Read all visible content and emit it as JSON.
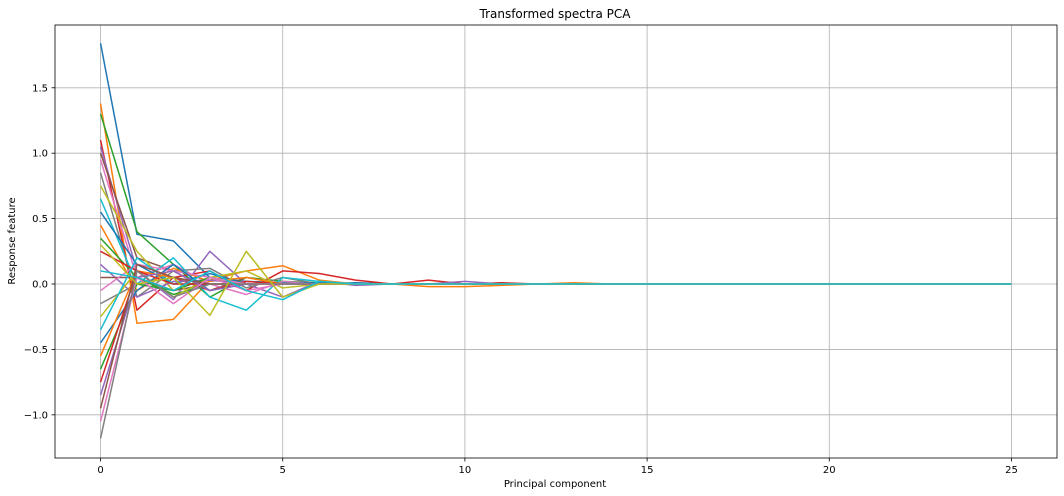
{
  "chart_data": {
    "type": "line",
    "title": "Transformed spectra PCA",
    "xlabel": "Principal component",
    "ylabel": "Response feature",
    "xlim": [
      -1.25,
      26.25
    ],
    "ylim": [
      -1.33,
      1.98
    ],
    "xticks": [
      0,
      5,
      10,
      15,
      20,
      25
    ],
    "xtick_labels": [
      "0",
      "5",
      "10",
      "15",
      "20",
      "25"
    ],
    "yticks": [
      -1.0,
      -0.5,
      0.0,
      0.5,
      1.0,
      1.5
    ],
    "ytick_labels": [
      "−1.0",
      "−0.5",
      "0.0",
      "0.5",
      "1.0",
      "1.5"
    ],
    "grid": true,
    "legend": "none",
    "x": [
      0,
      1,
      2,
      3,
      4,
      5,
      6,
      7,
      8,
      9,
      10,
      11,
      12,
      13,
      14,
      15,
      16,
      17,
      18,
      19,
      20,
      21,
      22,
      23,
      24,
      25
    ],
    "colors": [
      "#1f77b4",
      "#ff7f0e",
      "#2ca02c",
      "#d62728",
      "#9467bd",
      "#8c564b",
      "#e377c2",
      "#7f7f7f",
      "#bcbd22",
      "#17becf"
    ],
    "series": [
      {
        "values": [
          1.84,
          0.38,
          0.33,
          0.05,
          0.02,
          0.01,
          0.0,
          0.01,
          0.0,
          0.0,
          0.0,
          0.0,
          0.0,
          0.0,
          0.0,
          0.0,
          0.0,
          0.0,
          0.0,
          0.0,
          0.0,
          0.0,
          0.0,
          0.0,
          0.0,
          0.0
        ]
      },
      {
        "values": [
          1.38,
          -0.3,
          -0.27,
          0.03,
          0.1,
          0.14,
          0.03,
          0.0,
          0.0,
          -0.02,
          -0.02,
          -0.01,
          0.0,
          0.01,
          0.0,
          0.0,
          0.0,
          0.0,
          0.0,
          0.0,
          0.0,
          0.0,
          0.0,
          0.0,
          0.0,
          0.0
        ]
      },
      {
        "values": [
          1.3,
          0.4,
          0.15,
          -0.1,
          0.05,
          0.02,
          0.01,
          0.0,
          0.0,
          0.0,
          0.0,
          0.0,
          0.0,
          0.0,
          0.0,
          0.0,
          0.0,
          0.0,
          0.0,
          0.0,
          0.0,
          0.0,
          0.0,
          0.0,
          0.0,
          0.0
        ]
      },
      {
        "values": [
          1.1,
          -0.2,
          0.05,
          0.1,
          -0.05,
          0.1,
          0.08,
          0.03,
          0.0,
          0.03,
          0.0,
          0.01,
          0.0,
          0.0,
          0.0,
          0.0,
          0.0,
          0.0,
          0.0,
          0.0,
          0.0,
          0.0,
          0.0,
          0.0,
          0.0,
          0.0
        ]
      },
      {
        "values": [
          1.05,
          0.1,
          -0.12,
          0.25,
          0.0,
          -0.1,
          0.02,
          -0.01,
          0.0,
          0.0,
          0.02,
          0.0,
          0.0,
          0.0,
          0.0,
          0.0,
          0.0,
          0.0,
          0.0,
          0.0,
          0.0,
          0.0,
          0.0,
          0.0,
          0.0,
          0.0
        ]
      },
      {
        "values": [
          1.0,
          0.2,
          0.1,
          -0.05,
          0.05,
          0.0,
          0.0,
          0.0,
          0.0,
          0.0,
          0.0,
          0.0,
          0.0,
          0.0,
          0.0,
          0.0,
          0.0,
          0.0,
          0.0,
          0.0,
          0.0,
          0.0,
          0.0,
          0.0,
          0.0,
          0.0
        ]
      },
      {
        "values": [
          0.95,
          0.05,
          0.15,
          0.0,
          -0.08,
          0.02,
          0.0,
          0.0,
          0.0,
          0.0,
          0.0,
          0.0,
          0.0,
          0.0,
          0.0,
          0.0,
          0.0,
          0.0,
          0.0,
          0.0,
          0.0,
          0.0,
          0.0,
          0.0,
          0.0,
          0.0
        ]
      },
      {
        "values": [
          0.85,
          -0.1,
          0.1,
          0.12,
          -0.03,
          0.05,
          0.0,
          0.0,
          0.0,
          0.0,
          0.0,
          0.0,
          0.0,
          0.0,
          0.0,
          0.0,
          0.0,
          0.0,
          0.0,
          0.0,
          0.0,
          0.0,
          0.0,
          0.0,
          0.0,
          0.0
        ]
      },
      {
        "values": [
          0.75,
          0.25,
          -0.05,
          0.05,
          0.1,
          -0.03,
          0.0,
          0.0,
          0.0,
          0.0,
          0.0,
          0.0,
          0.0,
          0.0,
          0.0,
          0.0,
          0.0,
          0.0,
          0.0,
          0.0,
          0.0,
          0.0,
          0.0,
          0.0,
          0.0,
          0.0
        ]
      },
      {
        "values": [
          0.65,
          0.0,
          0.2,
          -0.1,
          -0.2,
          0.05,
          0.02,
          0.0,
          0.0,
          0.0,
          0.0,
          0.0,
          0.0,
          0.0,
          0.0,
          0.0,
          0.0,
          0.0,
          0.0,
          0.0,
          0.0,
          0.0,
          0.0,
          0.0,
          0.0,
          0.0
        ]
      },
      {
        "values": [
          0.55,
          0.15,
          0.0,
          0.08,
          0.0,
          0.0,
          0.01,
          0.0,
          0.0,
          0.0,
          0.0,
          0.0,
          0.0,
          0.0,
          0.0,
          0.0,
          0.0,
          0.0,
          0.0,
          0.0,
          0.0,
          0.0,
          0.0,
          0.0,
          0.0,
          0.0
        ]
      },
      {
        "values": [
          0.45,
          -0.05,
          0.12,
          0.02,
          0.05,
          0.0,
          0.0,
          0.0,
          0.0,
          0.0,
          0.0,
          0.0,
          0.0,
          0.0,
          0.0,
          0.0,
          0.0,
          0.0,
          0.0,
          0.0,
          0.0,
          0.0,
          0.0,
          0.0,
          0.0,
          0.0
        ]
      },
      {
        "values": [
          0.35,
          0.05,
          -0.08,
          0.0,
          0.0,
          0.0,
          0.0,
          0.0,
          0.0,
          0.0,
          0.0,
          0.0,
          0.0,
          0.0,
          0.0,
          0.0,
          0.0,
          0.0,
          0.0,
          0.0,
          0.0,
          0.0,
          0.0,
          0.0,
          0.0,
          0.0
        ]
      },
      {
        "values": [
          0.25,
          0.1,
          0.05,
          -0.05,
          0.02,
          0.0,
          0.0,
          0.0,
          0.0,
          0.0,
          0.0,
          0.0,
          0.0,
          0.0,
          0.0,
          0.0,
          0.0,
          0.0,
          0.0,
          0.0,
          0.0,
          0.0,
          0.0,
          0.0,
          0.0,
          0.0
        ]
      },
      {
        "values": [
          0.15,
          -0.1,
          0.02,
          0.03,
          0.0,
          0.0,
          0.0,
          0.0,
          0.0,
          0.0,
          0.0,
          0.0,
          0.0,
          0.0,
          0.0,
          0.0,
          0.0,
          0.0,
          0.0,
          0.0,
          0.0,
          0.0,
          0.0,
          0.0,
          0.0,
          0.0
        ]
      },
      {
        "values": [
          0.05,
          0.05,
          -0.05,
          0.0,
          0.0,
          0.0,
          0.0,
          0.0,
          0.0,
          0.0,
          0.0,
          0.0,
          0.0,
          0.0,
          0.0,
          0.0,
          0.0,
          0.0,
          0.0,
          0.0,
          0.0,
          0.0,
          0.0,
          0.0,
          0.0,
          0.0
        ]
      },
      {
        "values": [
          -0.05,
          0.15,
          0.1,
          0.05,
          -0.05,
          0.0,
          0.0,
          0.0,
          0.0,
          0.0,
          0.0,
          0.0,
          0.0,
          0.0,
          0.0,
          0.0,
          0.0,
          0.0,
          0.0,
          0.0,
          0.0,
          0.0,
          0.0,
          0.0,
          0.0,
          0.0
        ]
      },
      {
        "values": [
          -0.15,
          0.0,
          0.05,
          0.0,
          0.0,
          0.0,
          0.0,
          0.0,
          0.0,
          0.0,
          0.0,
          0.0,
          0.0,
          0.0,
          0.0,
          0.0,
          0.0,
          0.0,
          0.0,
          0.0,
          0.0,
          0.0,
          0.0,
          0.0,
          0.0,
          0.0
        ]
      },
      {
        "values": [
          -0.25,
          0.1,
          -0.1,
          0.05,
          0.0,
          0.0,
          0.0,
          0.0,
          0.0,
          0.0,
          0.0,
          0.0,
          0.0,
          0.0,
          0.0,
          0.0,
          0.0,
          0.0,
          0.0,
          0.0,
          0.0,
          0.0,
          0.0,
          0.0,
          0.0,
          0.0
        ]
      },
      {
        "values": [
          -0.35,
          0.2,
          0.0,
          0.0,
          0.0,
          0.0,
          0.0,
          0.0,
          0.0,
          0.0,
          0.0,
          0.0,
          0.0,
          0.0,
          0.0,
          0.0,
          0.0,
          0.0,
          0.0,
          0.0,
          0.0,
          0.0,
          0.0,
          0.0,
          0.0,
          0.0
        ]
      },
      {
        "values": [
          -0.45,
          -0.05,
          0.15,
          -0.05,
          0.0,
          0.0,
          0.0,
          0.0,
          0.0,
          0.0,
          0.0,
          0.0,
          0.0,
          0.0,
          0.0,
          0.0,
          0.0,
          0.0,
          0.0,
          0.0,
          0.0,
          0.0,
          0.0,
          0.0,
          0.0,
          0.0
        ]
      },
      {
        "values": [
          -0.55,
          0.1,
          0.05,
          0.0,
          0.0,
          0.0,
          0.0,
          0.0,
          0.0,
          0.0,
          0.0,
          0.0,
          0.0,
          0.0,
          0.0,
          0.0,
          0.0,
          0.0,
          0.0,
          0.0,
          0.0,
          0.0,
          0.0,
          0.0,
          0.0,
          0.0
        ]
      },
      {
        "values": [
          -0.65,
          0.0,
          -0.05,
          0.05,
          0.0,
          0.0,
          0.0,
          0.0,
          0.0,
          0.0,
          0.0,
          0.0,
          0.0,
          0.0,
          0.0,
          0.0,
          0.0,
          0.0,
          0.0,
          0.0,
          0.0,
          0.0,
          0.0,
          0.0,
          0.0,
          0.0
        ]
      },
      {
        "values": [
          -0.75,
          0.1,
          0.0,
          0.0,
          0.0,
          0.0,
          0.0,
          0.0,
          0.0,
          0.0,
          0.0,
          0.0,
          0.0,
          0.0,
          0.0,
          0.0,
          0.0,
          0.0,
          0.0,
          0.0,
          0.0,
          0.0,
          0.0,
          0.0,
          0.0,
          0.0
        ]
      },
      {
        "values": [
          -0.85,
          0.05,
          0.1,
          -0.05,
          0.0,
          0.0,
          0.0,
          0.0,
          0.0,
          0.0,
          0.0,
          0.0,
          0.0,
          0.0,
          0.0,
          0.0,
          0.0,
          0.0,
          0.0,
          0.0,
          0.0,
          0.0,
          0.0,
          0.0,
          0.0,
          0.0
        ]
      },
      {
        "values": [
          -0.95,
          0.15,
          0.05,
          0.0,
          0.0,
          0.0,
          0.0,
          0.0,
          0.0,
          0.0,
          0.0,
          0.0,
          0.0,
          0.0,
          0.0,
          0.0,
          0.0,
          0.0,
          0.0,
          0.0,
          0.0,
          0.0,
          0.0,
          0.0,
          0.0,
          0.0
        ]
      },
      {
        "values": [
          -1.05,
          0.05,
          -0.15,
          0.05,
          0.0,
          0.0,
          0.0,
          0.0,
          0.0,
          0.0,
          0.0,
          0.0,
          0.0,
          0.0,
          0.0,
          0.0,
          0.0,
          0.0,
          0.0,
          0.0,
          0.0,
          0.0,
          0.0,
          0.0,
          0.0,
          0.0
        ]
      },
      {
        "values": [
          -1.18,
          0.1,
          -0.1,
          0.0,
          0.0,
          0.0,
          0.0,
          0.0,
          0.0,
          0.0,
          0.0,
          0.0,
          0.0,
          0.0,
          0.0,
          0.0,
          0.0,
          0.0,
          0.0,
          0.0,
          0.0,
          0.0,
          0.0,
          0.0,
          0.0,
          0.0
        ]
      },
      {
        "values": [
          0.3,
          0.0,
          0.05,
          -0.24,
          0.25,
          -0.1,
          0.0,
          0.0,
          0.0,
          0.0,
          0.0,
          0.0,
          0.0,
          0.0,
          0.0,
          0.0,
          0.0,
          0.0,
          0.0,
          0.0,
          0.0,
          0.0,
          0.0,
          0.0,
          0.0,
          0.0
        ]
      },
      {
        "values": [
          0.1,
          0.05,
          -0.05,
          0.1,
          -0.05,
          -0.12,
          0.02,
          0.0,
          0.0,
          0.0,
          0.0,
          0.0,
          0.0,
          0.0,
          0.0,
          0.0,
          0.0,
          0.0,
          0.0,
          0.0,
          0.0,
          0.0,
          0.0,
          0.0,
          0.0,
          0.0
        ]
      }
    ]
  }
}
